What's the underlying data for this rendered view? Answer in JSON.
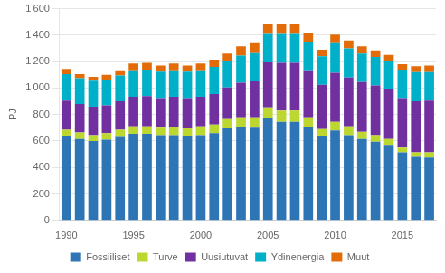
{
  "chart_data": {
    "type": "bar",
    "stacked": true,
    "ylabel": "PJ",
    "categories": [
      "1990",
      null,
      null,
      null,
      null,
      "1995",
      null,
      null,
      null,
      null,
      "2000",
      null,
      null,
      null,
      null,
      "2005",
      null,
      null,
      null,
      null,
      "2010",
      null,
      null,
      null,
      null,
      "2015",
      null,
      null
    ],
    "series": [
      {
        "name": "Fossiiliset",
        "color": "#2e75b6",
        "values": [
          635,
          615,
          600,
          610,
          630,
          655,
          655,
          645,
          645,
          640,
          645,
          660,
          695,
          705,
          700,
          770,
          745,
          745,
          705,
          635,
          680,
          645,
          615,
          595,
          570,
          515,
          480,
          475
        ]
      },
      {
        "name": "Turve",
        "color": "#bdd731",
        "values": [
          50,
          50,
          45,
          50,
          55,
          55,
          55,
          55,
          60,
          55,
          65,
          65,
          70,
          75,
          80,
          85,
          85,
          85,
          75,
          55,
          65,
          65,
          55,
          50,
          45,
          35,
          35,
          40
        ]
      },
      {
        "name": "Uusiutuvat",
        "color": "#7030a0",
        "values": [
          220,
          215,
          215,
          210,
          215,
          225,
          230,
          225,
          230,
          230,
          225,
          230,
          240,
          260,
          270,
          340,
          360,
          360,
          355,
          335,
          370,
          370,
          375,
          375,
          375,
          375,
          385,
          390
        ]
      },
      {
        "name": "Ydinenergia",
        "color": "#00b0c8",
        "values": [
          200,
          195,
          195,
          195,
          195,
          200,
          200,
          200,
          200,
          200,
          200,
          205,
          200,
          205,
          215,
          215,
          220,
          220,
          215,
          215,
          225,
          220,
          215,
          215,
          215,
          215,
          220,
          215
        ]
      },
      {
        "name": "Muut",
        "color": "#e36c09",
        "values": [
          40,
          30,
          30,
          35,
          40,
          50,
          50,
          45,
          50,
          45,
          50,
          55,
          55,
          70,
          75,
          75,
          75,
          75,
          70,
          50,
          65,
          60,
          55,
          50,
          45,
          40,
          45,
          50
        ]
      }
    ],
    "ylim": [
      0,
      1600
    ],
    "yticks": [
      0,
      200,
      400,
      600,
      800,
      {
        "value": 1000,
        "label": "1 000"
      },
      {
        "value": 1200,
        "label": "1 200"
      },
      {
        "value": 1400,
        "label": "1 400"
      },
      {
        "value": 1600,
        "label": "1 600"
      }
    ],
    "grid": true,
    "legend": "bottom"
  }
}
